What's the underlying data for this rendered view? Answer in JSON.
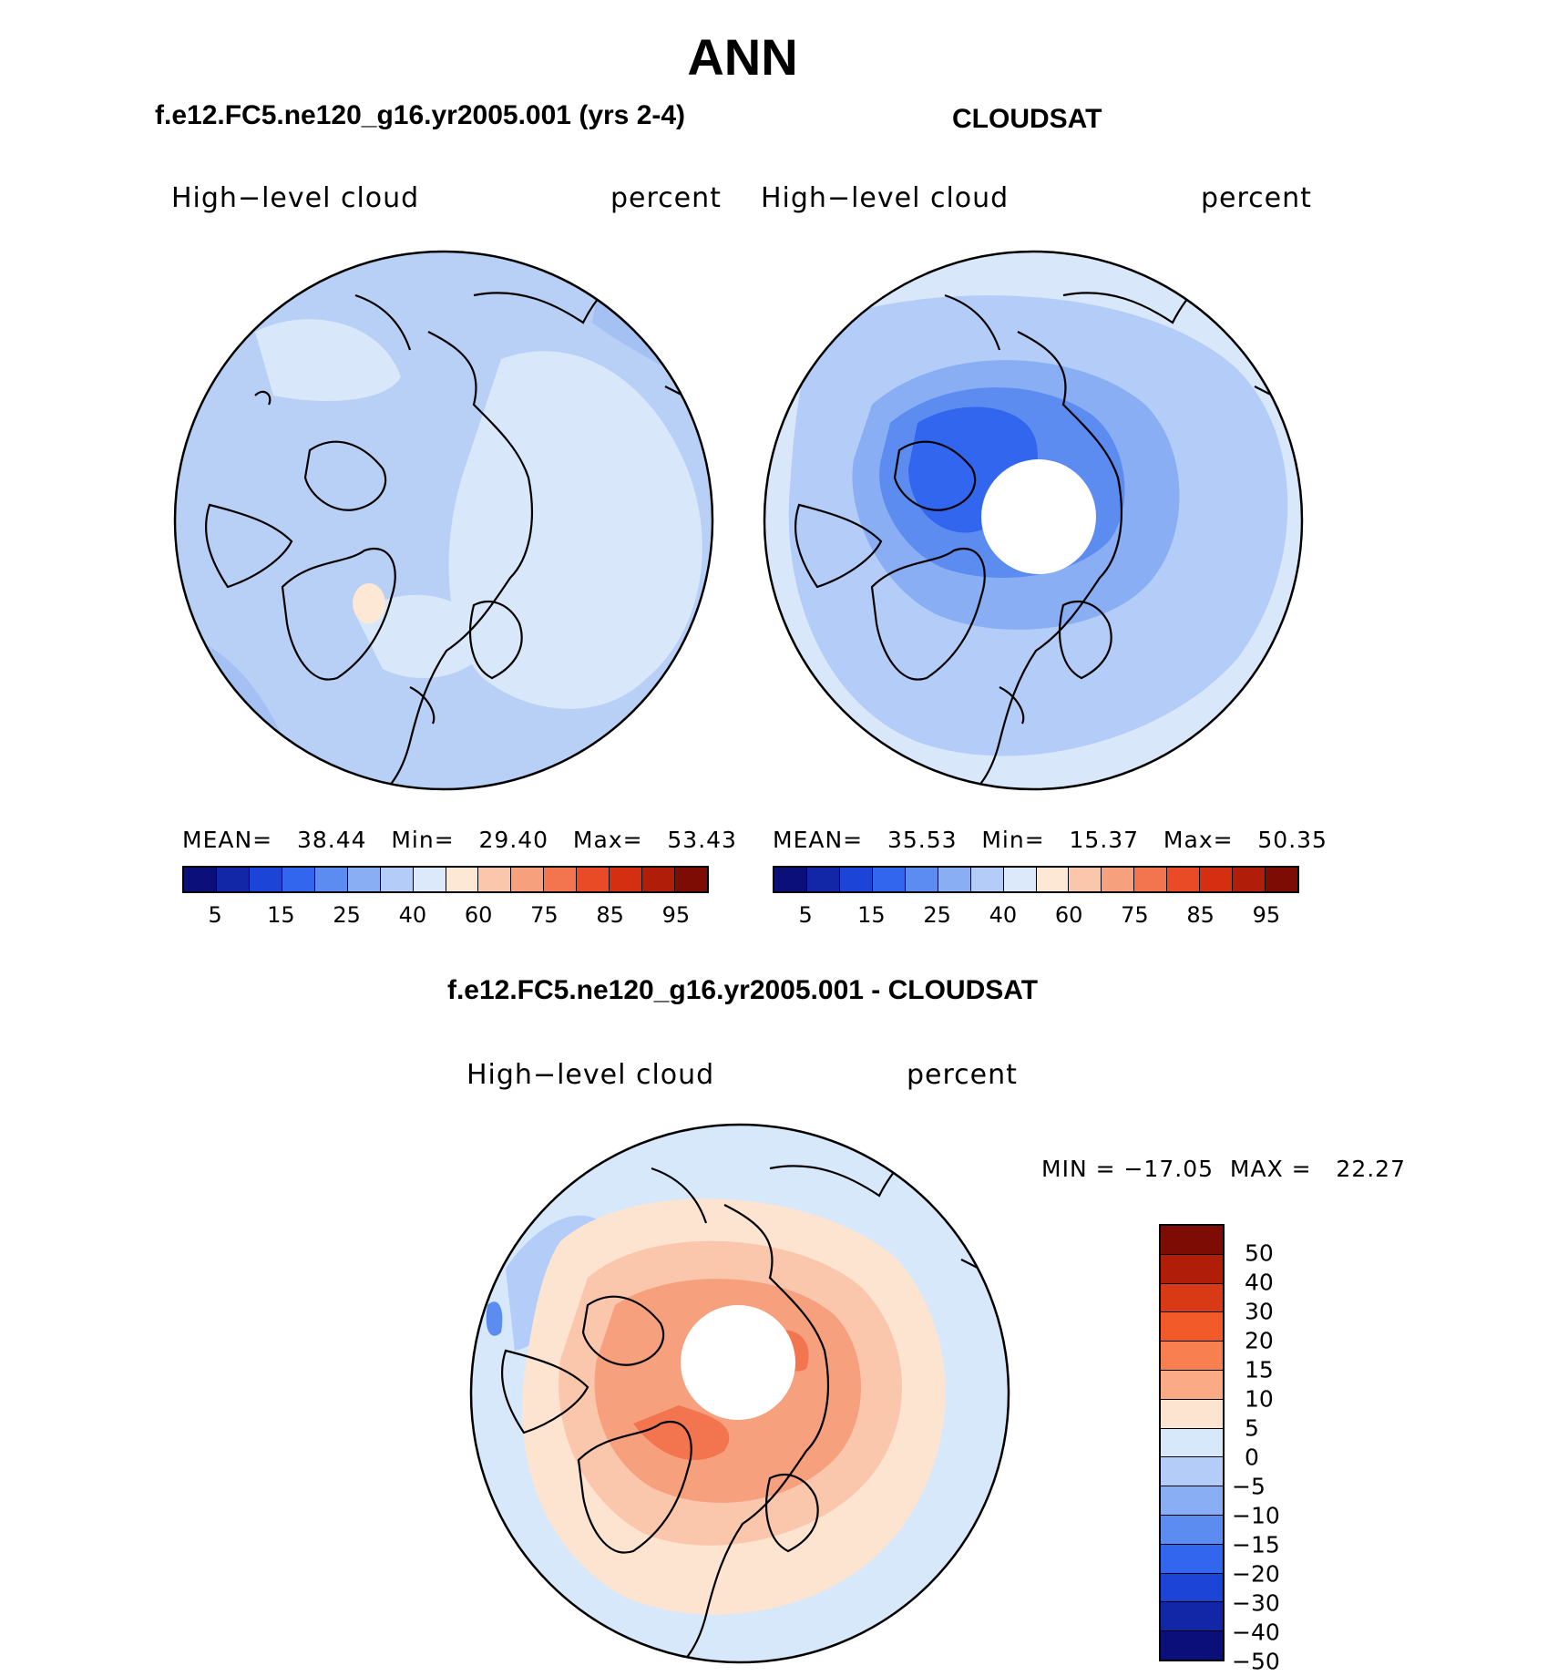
{
  "main_title": "ANN",
  "panels": {
    "model": {
      "title": "f.e12.FC5.ne120_g16.yr2005.001 (yrs 2-4)",
      "variable": "High−level cloud",
      "units": "percent",
      "stats": "MEAN=   38.44   Min=   29.40   Max=   53.43"
    },
    "obs": {
      "title": "CLOUDSAT",
      "variable": "High−level cloud",
      "units": "percent",
      "stats": "MEAN=   35.53   Min=   15.37   Max=   50.35"
    },
    "diff": {
      "title": "f.e12.FC5.ne120_g16.yr2005.001 - CLOUDSAT",
      "variable": "High−level cloud",
      "units": "percent",
      "stats": "MIN = −17.05  MAX =   22.27"
    }
  },
  "colorbar_abs": {
    "colors": [
      "#0a0f7a",
      "#1226a8",
      "#1c44d6",
      "#3366ee",
      "#5c8cf0",
      "#89aef4",
      "#b3cdf8",
      "#dbe9fb",
      "#fde8d6",
      "#fbc7ac",
      "#f7a07e",
      "#f2754f",
      "#e84b26",
      "#d42f10",
      "#b01e0a",
      "#7d0d04"
    ],
    "labels": [
      "5",
      "15",
      "25",
      "40",
      "60",
      "75",
      "85",
      "95"
    ]
  },
  "colorbar_diff": {
    "colors": [
      "#7d0d04",
      "#b01e0a",
      "#d83a16",
      "#f25a2a",
      "#f77f50",
      "#fbaa86",
      "#fde4d0",
      "#d7e8fb",
      "#b3cdf8",
      "#89aef4",
      "#5c8cf0",
      "#3366ee",
      "#1c44d6",
      "#1226a8",
      "#0a0f7a"
    ],
    "labels": [
      "50",
      "40",
      "30",
      "20",
      "15",
      "10",
      "5",
      "0",
      "−5",
      "−10",
      "−15",
      "−20",
      "−30",
      "−40",
      "−50"
    ]
  },
  "map_colors": {
    "model_base": "#b8cff6",
    "model_light": "#d9e7fb",
    "model_mid": "#a5c1f3",
    "obs_light": "#d9e7fb",
    "obs_mid": "#b3cdf8",
    "obs_deep": "#89aef4",
    "obs_deeper": "#5c8cf0",
    "obs_core": "#3366ee",
    "diff_outer": "#d7e8fb",
    "diff_ring1": "#fde4d0",
    "diff_ring2": "#fbc7ac",
    "diff_ring3": "#f7a07e",
    "diff_ring4": "#f2754f"
  }
}
